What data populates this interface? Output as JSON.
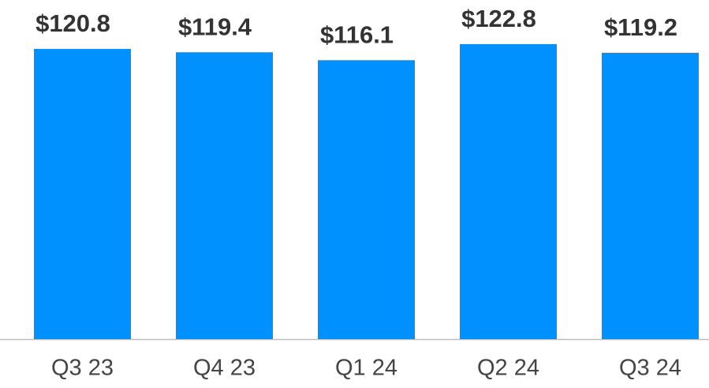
{
  "chart_data": {
    "type": "bar",
    "categories": [
      "Q3 23",
      "Q4 23",
      "Q1 24",
      "Q2 24",
      "Q3 24"
    ],
    "values": [
      120.8,
      119.4,
      116.1,
      122.8,
      119.2
    ],
    "value_labels": [
      "$120.8",
      "$119.4",
      "$116.1",
      "$122.8",
      "$119.2"
    ],
    "color": "#0091ff",
    "ylim": [
      0,
      130
    ]
  }
}
